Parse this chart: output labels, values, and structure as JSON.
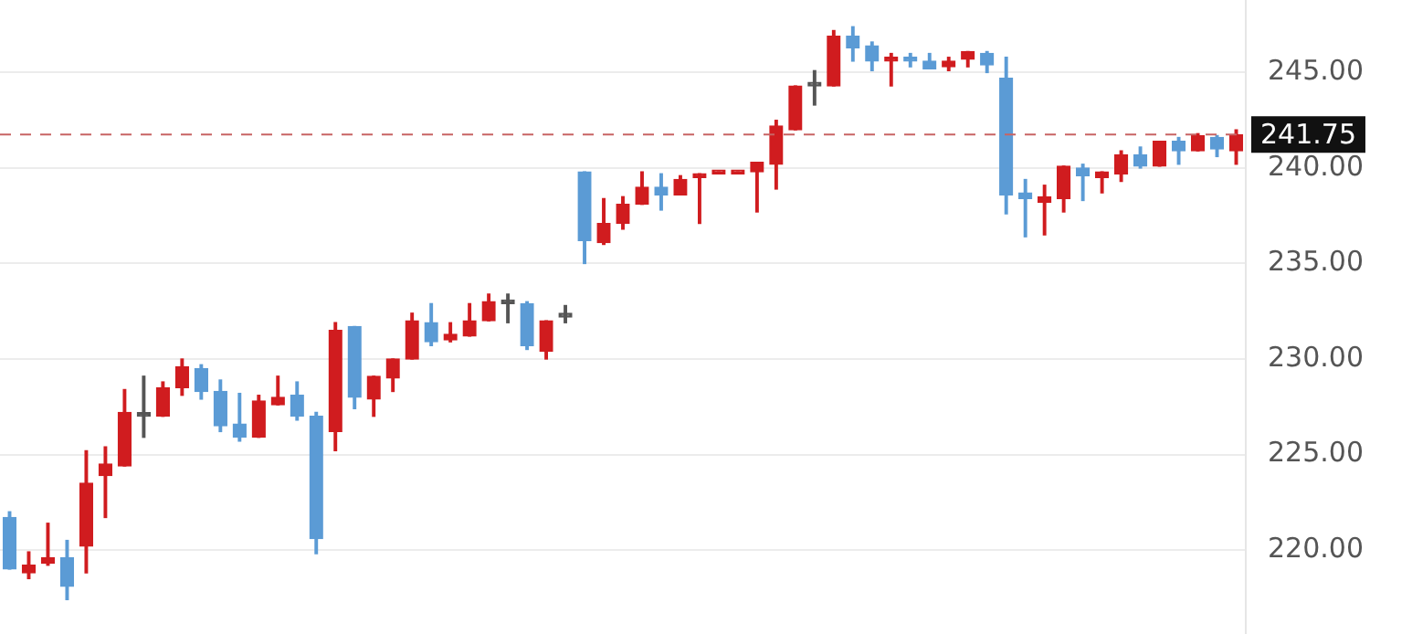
{
  "chart_data": {
    "type": "candlestick",
    "categories": [
      null,
      null,
      null,
      null,
      null,
      null,
      null,
      null,
      null,
      null,
      null,
      null,
      null,
      null,
      null,
      null,
      null,
      null,
      null,
      null,
      null,
      null,
      null,
      null,
      null,
      null,
      null,
      null,
      null,
      null,
      null,
      null,
      null,
      null,
      null,
      null,
      null,
      null,
      null,
      null,
      null,
      null,
      null,
      null,
      null,
      null,
      null,
      null,
      null,
      null,
      null,
      null,
      null,
      null,
      null,
      null,
      null,
      null,
      null,
      null,
      null,
      null,
      null,
      null,
      null
    ],
    "ohlc": [
      [
        221.7,
        222.0,
        219.0,
        219.0
      ],
      [
        218.8,
        219.9,
        218.5,
        219.2
      ],
      [
        219.3,
        221.4,
        219.2,
        219.6
      ],
      [
        219.6,
        220.5,
        217.4,
        218.1
      ],
      [
        220.2,
        225.2,
        218.8,
        223.5
      ],
      [
        223.9,
        225.4,
        221.7,
        224.5
      ],
      [
        224.4,
        228.4,
        224.4,
        227.2
      ],
      [
        227.0,
        229.1,
        225.9,
        227.0
      ],
      [
        227.0,
        228.8,
        227.0,
        228.5
      ],
      [
        228.5,
        230.0,
        228.1,
        229.6
      ],
      [
        229.5,
        229.7,
        227.9,
        228.3
      ],
      [
        228.3,
        228.9,
        226.2,
        226.5
      ],
      [
        226.6,
        228.2,
        225.7,
        225.9
      ],
      [
        225.9,
        228.1,
        225.9,
        227.8
      ],
      [
        227.6,
        229.1,
        227.6,
        228.0
      ],
      [
        228.1,
        228.8,
        226.8,
        227.0
      ],
      [
        227.0,
        227.2,
        219.8,
        220.6
      ],
      [
        226.2,
        231.9,
        225.2,
        231.5
      ],
      [
        231.7,
        231.7,
        227.4,
        228.0
      ],
      [
        227.9,
        229.1,
        227.0,
        229.1
      ],
      [
        229.0,
        230.0,
        228.3,
        230.0
      ],
      [
        230.0,
        232.4,
        230.0,
        232.0
      ],
      [
        231.9,
        232.9,
        230.7,
        230.9
      ],
      [
        231.0,
        231.9,
        230.9,
        231.3
      ],
      [
        231.2,
        232.9,
        231.2,
        232.0
      ],
      [
        232.0,
        233.4,
        232.0,
        233.0
      ],
      [
        232.9,
        233.4,
        231.9,
        232.9
      ],
      [
        232.9,
        233.0,
        230.5,
        230.7
      ],
      [
        230.4,
        232.0,
        230.0,
        232.0
      ],
      [
        232.2,
        232.8,
        231.9,
        232.2
      ],
      [
        239.8,
        239.8,
        235.0,
        236.2
      ],
      [
        236.1,
        238.4,
        236.0,
        237.1
      ],
      [
        237.1,
        238.5,
        236.8,
        238.1
      ],
      [
        238.1,
        239.8,
        238.1,
        239.0
      ],
      [
        239.0,
        239.7,
        237.8,
        238.6
      ],
      [
        238.6,
        239.6,
        238.6,
        239.4
      ],
      [
        239.5,
        239.7,
        237.1,
        239.7
      ],
      [
        239.7,
        239.8,
        239.7,
        239.8
      ],
      [
        239.7,
        239.8,
        239.7,
        239.8
      ],
      [
        239.8,
        240.3,
        237.7,
        240.3
      ],
      [
        240.2,
        242.5,
        238.9,
        242.2
      ],
      [
        242.0,
        244.3,
        242.0,
        244.3
      ],
      [
        244.3,
        245.1,
        243.3,
        244.3
      ],
      [
        244.3,
        247.2,
        244.3,
        246.9
      ],
      [
        246.9,
        247.4,
        245.6,
        246.3
      ],
      [
        246.4,
        246.6,
        245.1,
        245.6
      ],
      [
        245.6,
        246.0,
        244.3,
        245.8
      ],
      [
        245.8,
        246.0,
        245.3,
        245.6
      ],
      [
        245.6,
        246.0,
        245.2,
        245.2
      ],
      [
        245.3,
        245.8,
        245.1,
        245.6
      ],
      [
        245.7,
        246.1,
        245.3,
        246.1
      ],
      [
        246.0,
        246.1,
        245.0,
        245.4
      ],
      [
        244.7,
        245.8,
        237.6,
        238.6
      ],
      [
        238.7,
        239.4,
        236.4,
        238.4
      ],
      [
        238.2,
        239.1,
        236.5,
        238.5
      ],
      [
        238.4,
        240.1,
        237.7,
        240.1
      ],
      [
        240.0,
        240.2,
        238.3,
        239.6
      ],
      [
        239.5,
        239.8,
        238.7,
        239.8
      ],
      [
        239.7,
        240.9,
        239.3,
        240.7
      ],
      [
        240.7,
        241.1,
        240.0,
        240.1
      ],
      [
        240.1,
        241.4,
        240.1,
        241.4
      ],
      [
        241.4,
        241.6,
        240.2,
        240.9
      ],
      [
        240.9,
        241.8,
        240.9,
        241.7
      ],
      [
        241.6,
        241.7,
        240.6,
        241.0
      ],
      [
        240.9,
        242.0,
        240.2,
        241.75
      ]
    ],
    "colors": [
      "#5b9bd5",
      "#d01c1f",
      "#d01c1f",
      "#5b9bd5",
      "#d01c1f",
      "#d01c1f",
      "#d01c1f",
      "#555555",
      "#d01c1f",
      "#d01c1f",
      "#5b9bd5",
      "#5b9bd5",
      "#5b9bd5",
      "#d01c1f",
      "#d01c1f",
      "#5b9bd5",
      "#5b9bd5",
      "#d01c1f",
      "#5b9bd5",
      "#d01c1f",
      "#d01c1f",
      "#d01c1f",
      "#5b9bd5",
      "#d01c1f",
      "#d01c1f",
      "#d01c1f",
      "#555555",
      "#5b9bd5",
      "#d01c1f",
      "#555555",
      "#5b9bd5",
      "#d01c1f",
      "#d01c1f",
      "#d01c1f",
      "#5b9bd5",
      "#d01c1f",
      "#d01c1f",
      "#d01c1f",
      "#d01c1f",
      "#d01c1f",
      "#d01c1f",
      "#d01c1f",
      "#555555",
      "#d01c1f",
      "#5b9bd5",
      "#5b9bd5",
      "#d01c1f",
      "#5b9bd5",
      "#5b9bd5",
      "#d01c1f",
      "#d01c1f",
      "#5b9bd5",
      "#5b9bd5",
      "#5b9bd5",
      "#d01c1f",
      "#d01c1f",
      "#5b9bd5",
      "#d01c1f",
      "#d01c1f",
      "#5b9bd5",
      "#d01c1f",
      "#5b9bd5",
      "#d01c1f",
      "#5b9bd5",
      "#d01c1f"
    ],
    "ylim": [
      215.6,
      248.8
    ],
    "yticks": [
      {
        "value": 220,
        "label": "220.00"
      },
      {
        "value": 225,
        "label": "225.00"
      },
      {
        "value": 230,
        "label": "230.00"
      },
      {
        "value": 235,
        "label": "235.00"
      },
      {
        "value": 240,
        "label": "240.00"
      },
      {
        "value": 245,
        "label": "245.00"
      }
    ],
    "ref_lines": [
      {
        "axis": "y",
        "value": 241.75,
        "label": "241.75",
        "color": "#c86464",
        "line_style": "dashed"
      }
    ],
    "grid": "y",
    "legend": false,
    "tick_labels": "y"
  }
}
